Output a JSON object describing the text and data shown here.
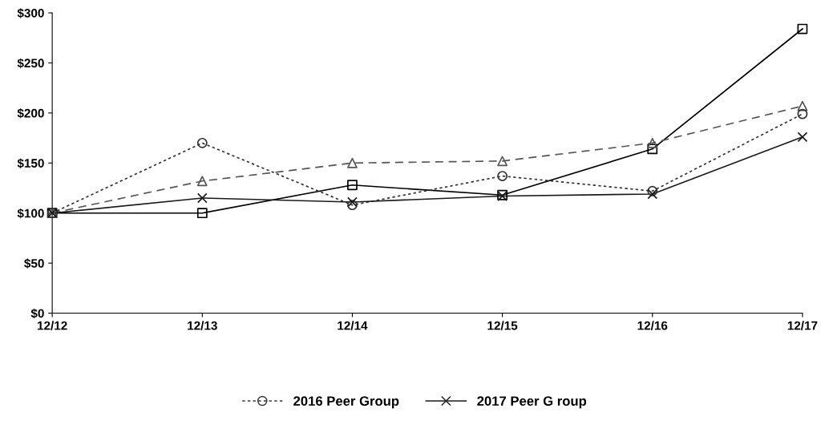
{
  "chart_data": {
    "type": "line",
    "categories": [
      "12/12",
      "12/13",
      "12/14",
      "12/15",
      "12/16",
      "12/17"
    ],
    "series": [
      {
        "color": "#000000",
        "values": [
          100,
          100,
          128,
          118,
          164,
          284
        ],
        "marker": "square",
        "line_style": "solid"
      },
      {
        "color": "#555555",
        "values": [
          100,
          132,
          150,
          152,
          170,
          207
        ],
        "marker": "triangle",
        "line_style": "dashed"
      },
      {
        "name": "2016 Peer Group",
        "color": "#333333",
        "values": [
          100,
          170,
          108,
          137,
          122,
          199
        ],
        "marker": "circle",
        "line_style": "dotted"
      },
      {
        "name": "2017 Peer G roup",
        "color": "#1a1a1a",
        "values": [
          100,
          115,
          111,
          117,
          119,
          176
        ],
        "marker": "cross",
        "line_style": "solid"
      }
    ],
    "ylim": [
      0,
      300
    ],
    "yticks": [
      {
        "value": 0,
        "label": "$0"
      },
      {
        "value": 50,
        "label": "$50"
      },
      {
        "value": 100,
        "label": "$100"
      },
      {
        "value": 150,
        "label": "$150"
      },
      {
        "value": 200,
        "label": "$200"
      },
      {
        "value": 250,
        "label": "$250"
      },
      {
        "value": 300,
        "label": "$300"
      }
    ],
    "grid": false,
    "legend": "bottom"
  }
}
